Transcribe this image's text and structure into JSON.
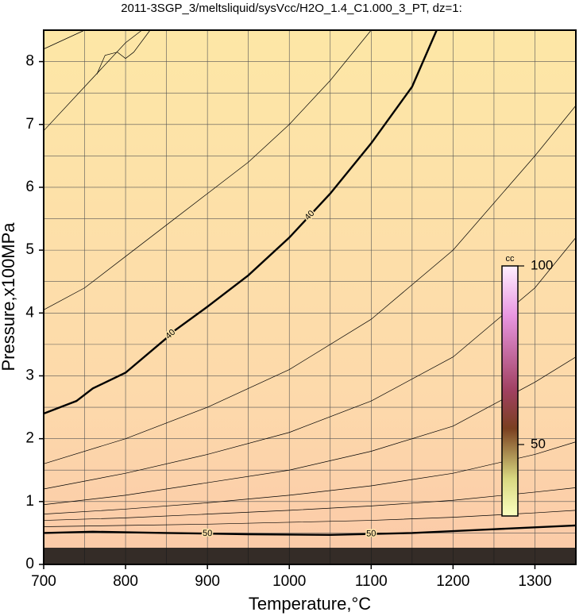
{
  "chart_data": {
    "type": "contour",
    "title": "2011-3SGP_3/meltsliquid/sysVcc/H2O_1.4_C1.000_3_PT, dz=1:",
    "x_label": "Temperature,°C",
    "y_label": "Pressure,x100MPa",
    "xlim": [
      700,
      1350
    ],
    "ylim": [
      0,
      8.5
    ],
    "xticks": [
      700,
      800,
      900,
      1000,
      1100,
      1200,
      1300
    ],
    "yticks": [
      0,
      1,
      2,
      3,
      4,
      5,
      6,
      7,
      8
    ],
    "xgrid": [
      750,
      800,
      850,
      900,
      950,
      1000,
      1050,
      1100,
      1150,
      1200,
      1250,
      1300
    ],
    "ygrid": [
      0.5,
      1,
      1.5,
      2,
      2.5,
      3,
      3.5,
      4,
      4.5,
      5,
      5.5,
      6,
      6.5,
      7,
      7.5,
      8
    ],
    "contours": [
      {
        "level": 40,
        "x": [
          700,
          740,
          760,
          800,
          850,
          860,
          900,
          950,
          1000,
          1050,
          1100,
          1150,
          1180
        ],
        "y": [
          2.4,
          2.6,
          2.8,
          3.05,
          3.6,
          3.72,
          4.1,
          4.6,
          5.2,
          5.9,
          6.7,
          7.6,
          8.5
        ]
      },
      {
        "level": 50,
        "x": [
          700,
          760,
          850,
          950,
          1050,
          1150,
          1250,
          1350
        ],
        "y": [
          0.5,
          0.52,
          0.5,
          0.48,
          0.47,
          0.5,
          0.56,
          0.62
        ]
      },
      {
        "x": [
          700,
          750
        ],
        "y": [
          8.2,
          8.5
        ]
      },
      {
        "x": [
          700,
          750,
          800,
          820
        ],
        "y": [
          6.9,
          7.6,
          8.3,
          8.5
        ]
      },
      {
        "x": [
          765,
          775,
          790,
          800,
          810,
          830
        ],
        "y": [
          7.8,
          8.1,
          8.15,
          8.05,
          8.15,
          8.5
        ]
      },
      {
        "x": [
          700,
          750,
          800,
          850,
          900,
          950,
          1000,
          1050,
          1100
        ],
        "y": [
          4.05,
          4.4,
          4.9,
          5.4,
          5.9,
          6.4,
          7.0,
          7.7,
          8.5
        ]
      },
      {
        "x": [
          700,
          800,
          900,
          1000,
          1100,
          1200,
          1300,
          1350
        ],
        "y": [
          1.6,
          2.0,
          2.5,
          3.1,
          3.9,
          5.0,
          6.5,
          7.3
        ]
      },
      {
        "x": [
          700,
          800,
          900,
          1000,
          1100,
          1200,
          1300,
          1350
        ],
        "y": [
          1.2,
          1.45,
          1.75,
          2.1,
          2.6,
          3.3,
          4.4,
          5.2
        ]
      },
      {
        "x": [
          700,
          800,
          900,
          1000,
          1100,
          1200,
          1300,
          1350
        ],
        "y": [
          0.95,
          1.1,
          1.3,
          1.5,
          1.8,
          2.2,
          2.9,
          3.3
        ]
      },
      {
        "x": [
          700,
          800,
          900,
          1000,
          1100,
          1200,
          1300,
          1350
        ],
        "y": [
          0.8,
          0.88,
          0.98,
          1.1,
          1.25,
          1.45,
          1.75,
          1.95
        ]
      },
      {
        "x": [
          700,
          800,
          900,
          1000,
          1100,
          1200,
          1300,
          1350
        ],
        "y": [
          0.7,
          0.74,
          0.8,
          0.86,
          0.93,
          1.02,
          1.15,
          1.22
        ]
      },
      {
        "x": [
          700,
          800,
          900,
          1000,
          1100,
          1200,
          1300,
          1350
        ],
        "y": [
          0.6,
          0.62,
          0.64,
          0.67,
          0.7,
          0.75,
          0.82,
          0.86
        ]
      }
    ],
    "colorbar": {
      "label": "cc",
      "lim": [
        30,
        100
      ],
      "ticks": [
        50,
        100
      ]
    }
  }
}
